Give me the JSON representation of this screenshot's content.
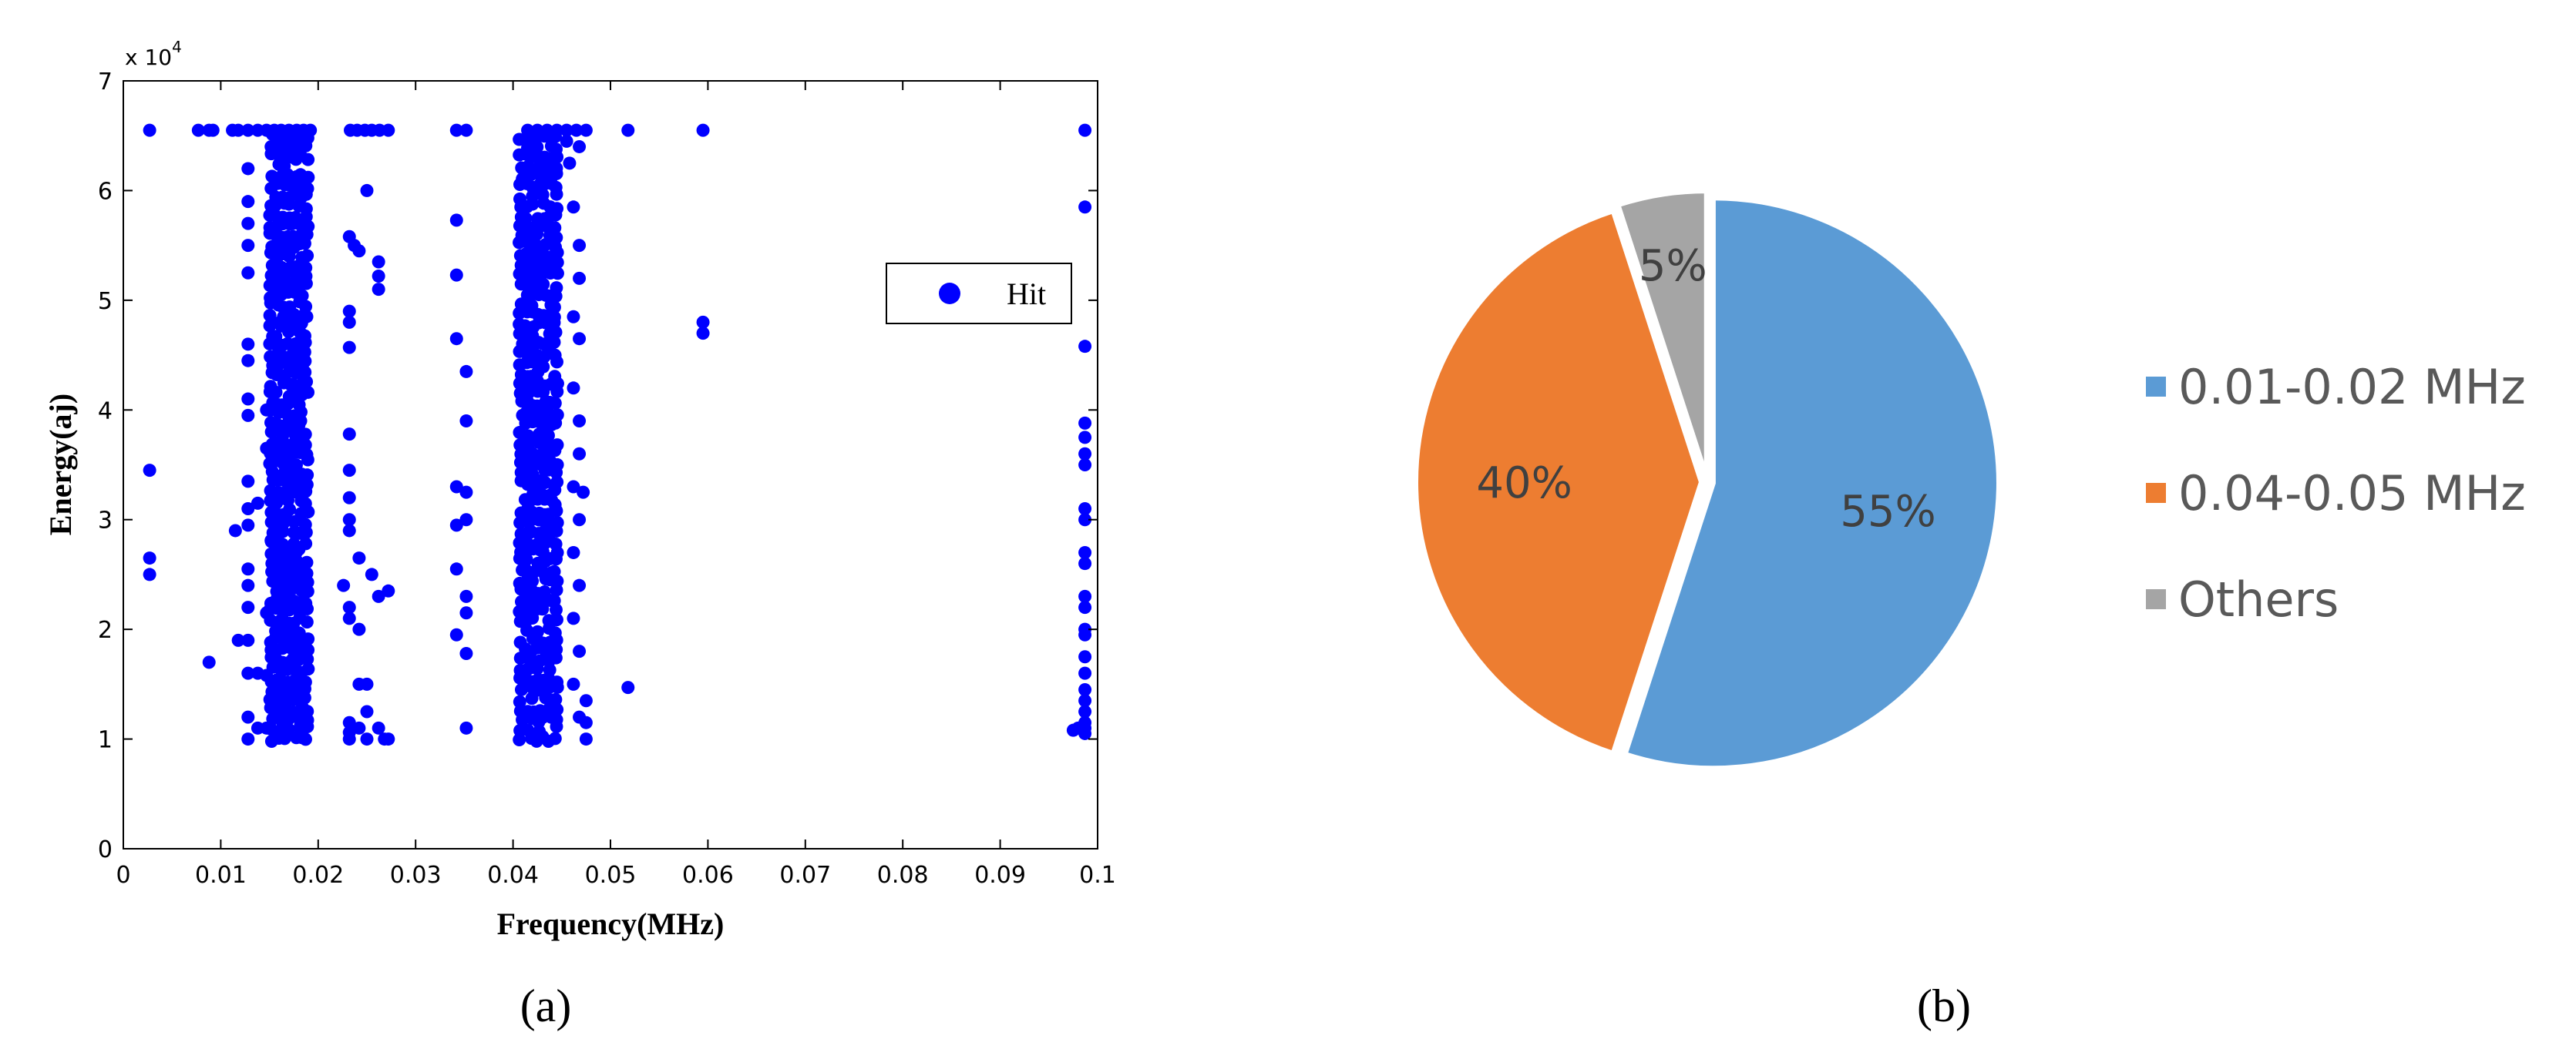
{
  "panels": {
    "a": {
      "label": "(a)",
      "chart_data": {
        "type": "scatter",
        "xlabel": "Frequency(MHz)",
        "ylabel": "Energy(aj)",
        "y_multiplier": "x 10",
        "y_multiplier_exp": "4",
        "xlim": [
          0,
          0.1
        ],
        "ylim": [
          0,
          70000
        ],
        "x_ticks": [
          "0",
          "0.01",
          "0.02",
          "0.03",
          "0.04",
          "0.05",
          "0.06",
          "0.07",
          "0.08",
          "0.09",
          "0.1"
        ],
        "y_ticks": [
          "0",
          "1",
          "2",
          "3",
          "4",
          "5",
          "6",
          "7"
        ],
        "grid": false,
        "legend_position": "right",
        "series": [
          {
            "name": "Hit",
            "color": "#0000ff",
            "points": [
              [
                0.0027,
                65500
              ],
              [
                0.0027,
                34500
              ],
              [
                0.0027,
                26500
              ],
              [
                0.0027,
                25000
              ],
              [
                0.0077,
                65500
              ],
              [
                0.0088,
                65500
              ],
              [
                0.0088,
                17000
              ],
              [
                0.0092,
                65500
              ],
              [
                0.0112,
                65500
              ],
              [
                0.0118,
                65500
              ],
              [
                0.0115,
                29000
              ],
              [
                0.0118,
                19000
              ],
              [
                0.0128,
                65500
              ],
              [
                0.0128,
                62000
              ],
              [
                0.0128,
                59000
              ],
              [
                0.0128,
                57000
              ],
              [
                0.0128,
                55000
              ],
              [
                0.0128,
                52500
              ],
              [
                0.0128,
                46000
              ],
              [
                0.0128,
                44500
              ],
              [
                0.0128,
                41000
              ],
              [
                0.0128,
                39500
              ],
              [
                0.0128,
                33500
              ],
              [
                0.0128,
                31000
              ],
              [
                0.0128,
                29500
              ],
              [
                0.0128,
                25500
              ],
              [
                0.0128,
                24000
              ],
              [
                0.0128,
                22000
              ],
              [
                0.0128,
                19000
              ],
              [
                0.0128,
                16000
              ],
              [
                0.0128,
                12000
              ],
              [
                0.0128,
                10000
              ],
              [
                0.0138,
                65500
              ],
              [
                0.0138,
                31500
              ],
              [
                0.0138,
                16000
              ],
              [
                0.0138,
                11000
              ],
              [
                0.0147,
                65500
              ],
              [
                0.0147,
                40000
              ],
              [
                0.0147,
                36500
              ],
              [
                0.0147,
                21500
              ],
              [
                0.0147,
                15800
              ],
              [
                0.0147,
                11000
              ],
              [
                0.0155,
                65500
              ],
              [
                0.0162,
                65500
              ],
              [
                0.017,
                65500
              ],
              [
                0.0178,
                65500
              ],
              [
                0.0185,
                65500
              ],
              [
                0.0192,
                65500
              ],
              [
                0.0152,
                38000
              ],
              [
                0.0158,
                52000
              ],
              [
                0.0152,
                28000
              ],
              [
                0.0158,
                17000
              ],
              [
                0.0182,
                11500
              ],
              [
                0.0182,
                24000
              ],
              [
                0.0182,
                39000
              ],
              [
                0.0182,
                47000
              ],
              [
                0.0182,
                60000
              ],
              [
                0.0233,
                65500
              ],
              [
                0.024,
                65500
              ],
              [
                0.0248,
                65500
              ],
              [
                0.0255,
                65500
              ],
              [
                0.0263,
                65500
              ],
              [
                0.0272,
                65500
              ],
              [
                0.0232,
                55800
              ],
              [
                0.0237,
                55000
              ],
              [
                0.0232,
                49000
              ],
              [
                0.0232,
                48000
              ],
              [
                0.0232,
                45700
              ],
              [
                0.0232,
                37800
              ],
              [
                0.0232,
                34500
              ],
              [
                0.0232,
                32000
              ],
              [
                0.0232,
                30000
              ],
              [
                0.0232,
                29000
              ],
              [
                0.0232,
                22000
              ],
              [
                0.0232,
                21000
              ],
              [
                0.0232,
                11500
              ],
              [
                0.0232,
                10600
              ],
              [
                0.0232,
                10000
              ],
              [
                0.0242,
                54500
              ],
              [
                0.0242,
                26500
              ],
              [
                0.0242,
                20000
              ],
              [
                0.0242,
                15000
              ],
              [
                0.0242,
                11000
              ],
              [
                0.025,
                60000
              ],
              [
                0.025,
                15000
              ],
              [
                0.025,
                12500
              ],
              [
                0.025,
                10000
              ],
              [
                0.0255,
                25000
              ],
              [
                0.0262,
                53500
              ],
              [
                0.0262,
                52200
              ],
              [
                0.0262,
                51000
              ],
              [
                0.0262,
                23000
              ],
              [
                0.0262,
                11000
              ],
              [
                0.0268,
                10000
              ],
              [
                0.0272,
                23500
              ],
              [
                0.0272,
                10000
              ],
              [
                0.0226,
                24000
              ],
              [
                0.0342,
                65500
              ],
              [
                0.0352,
                65500
              ],
              [
                0.0342,
                57300
              ],
              [
                0.0342,
                52300
              ],
              [
                0.0342,
                46500
              ],
              [
                0.0342,
                33000
              ],
              [
                0.0342,
                29500
              ],
              [
                0.0342,
                25500
              ],
              [
                0.0342,
                19500
              ],
              [
                0.0352,
                43500
              ],
              [
                0.0352,
                39000
              ],
              [
                0.0352,
                32500
              ],
              [
                0.0352,
                30000
              ],
              [
                0.0352,
                23000
              ],
              [
                0.0352,
                21500
              ],
              [
                0.0352,
                17800
              ],
              [
                0.0352,
                11000
              ],
              [
                0.0415,
                65500
              ],
              [
                0.0425,
                65500
              ],
              [
                0.0435,
                65500
              ],
              [
                0.0445,
                65500
              ],
              [
                0.0455,
                65500
              ],
              [
                0.0465,
                65500
              ],
              [
                0.0475,
                65500
              ],
              [
                0.0455,
                64500
              ],
              [
                0.0468,
                64000
              ],
              [
                0.0458,
                62500
              ],
              [
                0.0462,
                58500
              ],
              [
                0.0468,
                55000
              ],
              [
                0.0468,
                52000
              ],
              [
                0.0462,
                48500
              ],
              [
                0.0468,
                46500
              ],
              [
                0.0462,
                42000
              ],
              [
                0.0468,
                39000
              ],
              [
                0.0468,
                36000
              ],
              [
                0.0462,
                33000
              ],
              [
                0.0472,
                32500
              ],
              [
                0.0468,
                30000
              ],
              [
                0.0462,
                27000
              ],
              [
                0.0468,
                24000
              ],
              [
                0.0462,
                21000
              ],
              [
                0.0468,
                18000
              ],
              [
                0.0462,
                15000
              ],
              [
                0.0468,
                12000
              ],
              [
                0.0475,
                13500
              ],
              [
                0.0475,
                11500
              ],
              [
                0.0475,
                10000
              ],
              [
                0.0518,
                65500
              ],
              [
                0.0518,
                14700
              ],
              [
                0.0595,
                65500
              ],
              [
                0.0595,
                48000
              ],
              [
                0.0595,
                47000
              ],
              [
                0.0987,
                65500
              ],
              [
                0.0987,
                58500
              ],
              [
                0.0987,
                45800
              ],
              [
                0.0987,
                38800
              ],
              [
                0.0987,
                37500
              ],
              [
                0.0987,
                36000
              ],
              [
                0.0987,
                35000
              ],
              [
                0.0987,
                31000
              ],
              [
                0.0987,
                30000
              ],
              [
                0.0987,
                27000
              ],
              [
                0.0987,
                26000
              ],
              [
                0.0987,
                23000
              ],
              [
                0.0987,
                22000
              ],
              [
                0.0987,
                20000
              ],
              [
                0.0987,
                19500
              ],
              [
                0.0987,
                17500
              ],
              [
                0.0987,
                16000
              ],
              [
                0.0987,
                14500
              ],
              [
                0.0987,
                13500
              ],
              [
                0.0987,
                12500
              ],
              [
                0.0987,
                11500
              ],
              [
                0.0987,
                11000
              ],
              [
                0.0987,
                10500
              ],
              [
                0.098,
                11000
              ],
              [
                0.0975,
                10800
              ]
            ],
            "dense_bands": [
              {
                "x_min": 0.0152,
                "x_max": 0.0192,
                "y_min": 10000,
                "y_max": 65000,
                "x_step": 0.0006,
                "y_step": 900
              },
              {
                "x_min": 0.0408,
                "x_max": 0.0448,
                "y_min": 10000,
                "y_max": 65000,
                "x_step": 0.0006,
                "y_step": 900
              }
            ]
          }
        ]
      }
    },
    "b": {
      "label": "(b)",
      "chart_data": {
        "type": "pie",
        "start_angle_deg": 0,
        "direction": "clockwise",
        "exploded": true,
        "legend_position": "right",
        "slices": [
          {
            "label": "0.01-0.02 MHz",
            "value": 55,
            "text": "55%",
            "color": "#5b9bd5"
          },
          {
            "label": "0.04-0.05 MHz",
            "value": 40,
            "text": "40%",
            "color": "#ed7d31"
          },
          {
            "label": "Others",
            "value": 5,
            "text": "5%",
            "color": "#a5a5a5"
          }
        ]
      }
    }
  }
}
